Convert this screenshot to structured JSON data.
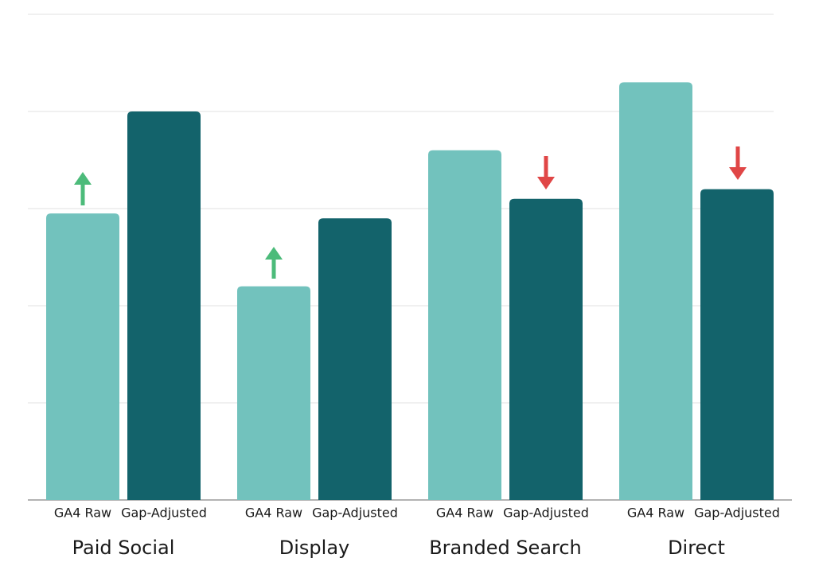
{
  "chart_data": {
    "type": "bar",
    "categories": [
      "Paid Social",
      "Display",
      "Branded Search",
      "Direct"
    ],
    "series": [
      {
        "name": "GA4 Raw",
        "color": "#72c2bd",
        "values": [
          2.95,
          2.2,
          3.6,
          4.3
        ]
      },
      {
        "name": "Gap-Adjusted",
        "color": "#13636b",
        "values": [
          4.0,
          2.9,
          3.1,
          3.2
        ]
      }
    ],
    "ylim": [
      0,
      5
    ],
    "yticks": [
      0,
      1,
      2,
      3,
      4,
      5
    ],
    "grid": true
  }
}
